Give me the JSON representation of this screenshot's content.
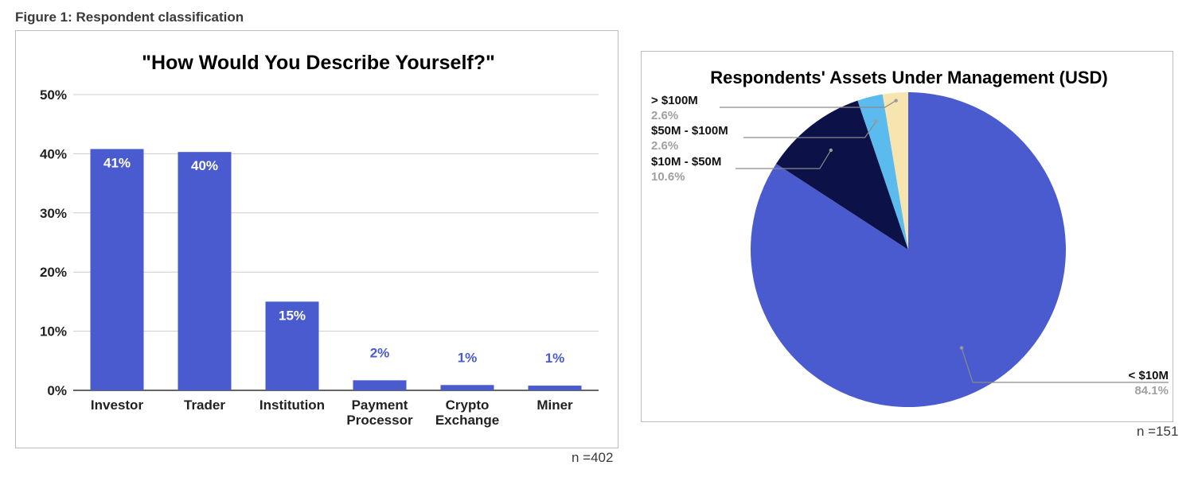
{
  "figure_title": "Figure 1: Respondent classification",
  "chart_data": [
    {
      "type": "bar",
      "title": "\"How Would You Describe Yourself?\"",
      "categories": [
        [
          "Investor"
        ],
        [
          "Trader"
        ],
        [
          "Institution"
        ],
        [
          "Payment",
          "Processor"
        ],
        [
          "Crypto",
          "Exchange"
        ],
        [
          "Miner"
        ]
      ],
      "values": [
        40.8,
        40.3,
        15.0,
        1.7,
        0.9,
        0.8
      ],
      "data_labels": [
        "41%",
        "40%",
        "15%",
        "2%",
        "1%",
        "1%"
      ],
      "yticks": [
        0,
        10,
        20,
        30,
        40,
        50
      ],
      "ytick_labels": [
        "0%",
        "10%",
        "20%",
        "30%",
        "40%",
        "50%"
      ],
      "ylim": [
        0,
        50
      ],
      "grid": true,
      "color": "#4a5bd0",
      "n_label": "n =402"
    },
    {
      "type": "pie",
      "title": "Respondents' Assets Under Management (USD)",
      "slices": [
        {
          "label": "< $10M",
          "value": 84.1,
          "value_label": "84.1%",
          "color": "#4a5bd0"
        },
        {
          "label": "$10M - $50M",
          "value": 10.6,
          "value_label": "10.6%",
          "color": "#0c1248"
        },
        {
          "label": "$50M - $100M",
          "value": 2.6,
          "value_label": "2.6%",
          "color": "#5bbbef"
        },
        {
          "label": "> $100M",
          "value": 2.6,
          "value_label": "2.6%",
          "color": "#f7e5b0"
        }
      ],
      "n_label": "n =151"
    }
  ]
}
